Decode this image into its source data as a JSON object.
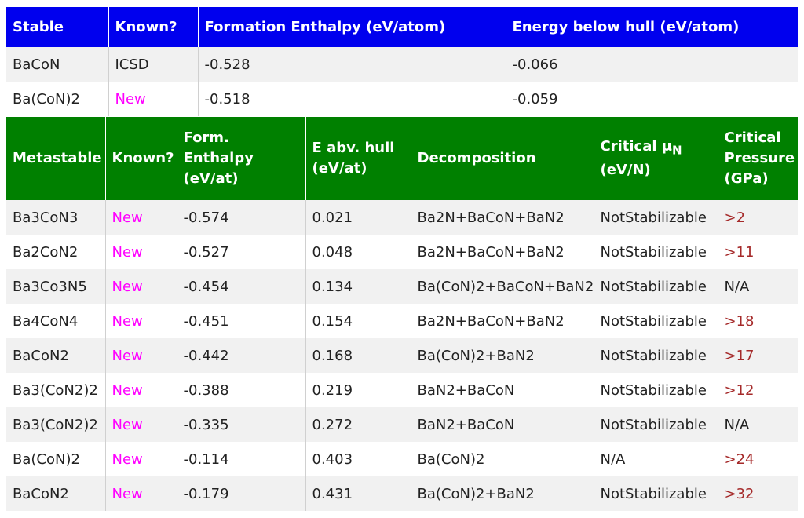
{
  "colors": {
    "stable_header": "#0000ee",
    "metastable_header": "#008000",
    "new": "#ff00ff",
    "pressure": "#a52a2a"
  },
  "stable": {
    "headers": [
      "Stable",
      "Known?",
      "Formation Enthalpy (eV/atom)",
      "Energy below hull (eV/atom)"
    ],
    "rows": [
      [
        "BaCoN",
        "ICSD",
        "-0.528",
        "-0.066"
      ],
      [
        "Ba(CoN)2",
        "New",
        "-0.518",
        "-0.059"
      ]
    ]
  },
  "metastable": {
    "headers": [
      "Metastable",
      "Known?",
      "Form. Enthalpy (eV/at)",
      "E abv. hull (eV/at)",
      "Decomposition",
      "Critical",
      "N",
      "(eV/N)",
      "Critical Pressure (GPa)"
    ],
    "rows": [
      [
        "Ba3CoN3",
        "New",
        "-0.574",
        "0.021",
        "Ba2N+BaCoN+BaN2",
        "NotStabilizable",
        ">2"
      ],
      [
        "Ba2CoN2",
        "New",
        "-0.527",
        "0.048",
        "Ba2N+BaCoN+BaN2",
        "NotStabilizable",
        ">11"
      ],
      [
        "Ba3Co3N5",
        "New",
        "-0.454",
        "0.134",
        "Ba(CoN)2+BaCoN+BaN2",
        "NotStabilizable",
        "N/A"
      ],
      [
        "Ba4CoN4",
        "New",
        "-0.451",
        "0.154",
        "Ba2N+BaCoN+BaN2",
        "NotStabilizable",
        ">18"
      ],
      [
        "BaCoN2",
        "New",
        "-0.442",
        "0.168",
        "Ba(CoN)2+BaN2",
        "NotStabilizable",
        ">17"
      ],
      [
        "Ba3(CoN2)2",
        "New",
        "-0.388",
        "0.219",
        "BaN2+BaCoN",
        "NotStabilizable",
        ">12"
      ],
      [
        "Ba3(CoN2)2",
        "New",
        "-0.335",
        "0.272",
        "BaN2+BaCoN",
        "NotStabilizable",
        "N/A"
      ],
      [
        "Ba(CoN)2",
        "New",
        "-0.114",
        "0.403",
        "Ba(CoN)2",
        "N/A",
        ">24"
      ],
      [
        "BaCoN2",
        "New",
        "-0.179",
        "0.431",
        "Ba(CoN)2+BaN2",
        "NotStabilizable",
        ">32"
      ]
    ]
  }
}
